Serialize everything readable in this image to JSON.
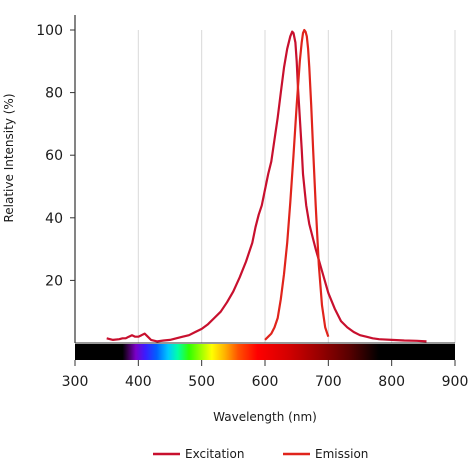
{
  "chart_data": {
    "type": "line",
    "xlabel": "Wavelength (nm)",
    "ylabel": "Relative Intensity (%)",
    "xlim": [
      300,
      900
    ],
    "ylim": [
      0,
      100
    ],
    "x_ticks": [
      300,
      400,
      500,
      600,
      700,
      800,
      900
    ],
    "y_ticks": [
      20,
      40,
      60,
      80,
      100
    ],
    "grid": "vertical",
    "legend_position": "bottom",
    "spectrum_bar": "visible spectrum color band below the plot, from about 380 nm to 780 nm",
    "series": [
      {
        "name": "Excitation",
        "color": "#c8102e",
        "x": [
          350,
          360,
          370,
          375,
          380,
          385,
          390,
          395,
          400,
          405,
          410,
          415,
          420,
          430,
          440,
          450,
          460,
          470,
          480,
          490,
          500,
          510,
          520,
          530,
          540,
          550,
          560,
          570,
          580,
          585,
          590,
          595,
          600,
          605,
          610,
          615,
          620,
          625,
          630,
          635,
          640,
          643,
          645,
          648,
          650,
          652,
          655,
          658,
          660,
          663,
          665,
          670,
          680,
          690,
          700,
          710,
          720,
          730,
          740,
          750,
          760,
          770,
          780,
          800,
          820,
          840,
          855
        ],
        "y": [
          1.5,
          1.0,
          1.2,
          1.5,
          1.5,
          2.0,
          2.5,
          2.0,
          2.0,
          2.5,
          3.0,
          2.0,
          1.0,
          0.5,
          0.8,
          1.0,
          1.5,
          2.0,
          2.5,
          3.5,
          4.5,
          6.0,
          8.0,
          10.0,
          13.0,
          16.5,
          21.0,
          26.0,
          32.0,
          37.0,
          41.0,
          44.0,
          49.0,
          54.0,
          58.0,
          65.0,
          72.0,
          80.0,
          88.0,
          94.0,
          98.0,
          99.5,
          99.0,
          96.0,
          90.0,
          82.0,
          72.0,
          62.0,
          54.0,
          48.0,
          44.0,
          38.0,
          30.0,
          23.0,
          16.0,
          11.0,
          7.0,
          5.0,
          3.5,
          2.5,
          2.0,
          1.5,
          1.2,
          1.0,
          0.8,
          0.7,
          0.5
        ]
      },
      {
        "name": "Emission",
        "color": "#e0241c",
        "x": [
          600,
          605,
          610,
          615,
          620,
          625,
          630,
          635,
          640,
          645,
          650,
          655,
          658,
          660,
          662,
          664,
          666,
          668,
          670,
          673,
          676,
          680,
          685,
          690,
          695,
          700
        ],
        "y": [
          1.0,
          2.0,
          3.0,
          5.0,
          8.0,
          14.0,
          22.0,
          32.0,
          45.0,
          60.0,
          76.0,
          90.0,
          96.0,
          99.0,
          100.0,
          99.5,
          98.0,
          94.0,
          88.0,
          76.0,
          62.0,
          44.0,
          25.0,
          12.0,
          5.0,
          2.0
        ]
      }
    ]
  }
}
